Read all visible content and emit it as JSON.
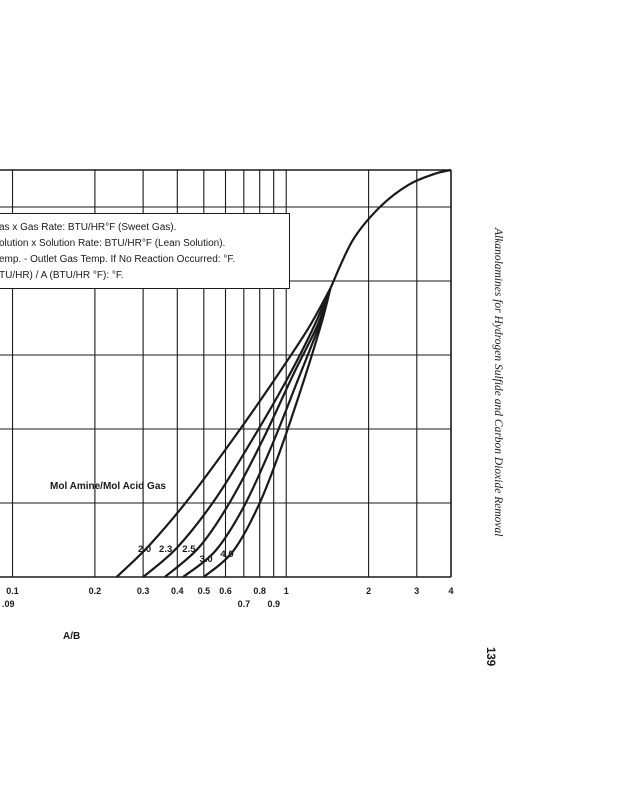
{
  "notes": [
    "as x Gas Rate: BTU/HR°F (Sweet Gas).",
    "olution x Solution Rate: BTU/HR°F (Lean Solution).",
    "emp. - Outlet Gas Temp. If No Reaction Occurred: °F.",
    "TU/HR) / A (BTU/HR °F): °F."
  ],
  "side_title": "Alkanolamines for Hydrogen Sulfide and Carbon Dioxide Removal",
  "page_number": "139",
  "chart_data": {
    "type": "line",
    "xscale": "log",
    "xlim": [
      0.09,
      4
    ],
    "xlabel": "A/B",
    "ylabel": "",
    "title": "",
    "grid": true,
    "x_ticks_upper": [
      "0.1",
      "0.2",
      "0.3",
      "0.4",
      "0.5",
      "0.6",
      "0.8",
      "1",
      "2",
      "3",
      "4"
    ],
    "x_ticks_upper_values": [
      0.1,
      0.2,
      0.3,
      0.4,
      0.5,
      0.6,
      0.8,
      1,
      2,
      3,
      4
    ],
    "x_ticks_lower": [
      ".09",
      "0.7",
      "0.9"
    ],
    "x_ticks_lower_values": [
      0.09,
      0.7,
      0.9
    ],
    "annotation": "Mol Amine/Mol Acid Gas",
    "series": [
      {
        "name": "2.0",
        "label_at": 0.31,
        "points": [
          [
            0.24,
            0.0
          ],
          [
            0.32,
            0.09
          ],
          [
            0.45,
            0.22
          ],
          [
            0.65,
            0.38
          ],
          [
            0.9,
            0.53
          ],
          [
            1.2,
            0.67
          ],
          [
            1.45,
            0.78
          ]
        ]
      },
      {
        "name": "2.3",
        "label_at": 0.37,
        "points": [
          [
            0.3,
            0.0
          ],
          [
            0.4,
            0.08
          ],
          [
            0.55,
            0.21
          ],
          [
            0.75,
            0.37
          ],
          [
            1.0,
            0.53
          ],
          [
            1.25,
            0.67
          ],
          [
            1.45,
            0.78
          ]
        ]
      },
      {
        "name": "2.5",
        "label_at": 0.45,
        "points": [
          [
            0.36,
            0.0
          ],
          [
            0.48,
            0.08
          ],
          [
            0.62,
            0.2
          ],
          [
            0.82,
            0.37
          ],
          [
            1.05,
            0.54
          ],
          [
            1.3,
            0.68
          ],
          [
            1.45,
            0.78
          ]
        ]
      },
      {
        "name": "3.0",
        "label_at": 0.52,
        "points": [
          [
            0.42,
            0.0
          ],
          [
            0.55,
            0.07
          ],
          [
            0.7,
            0.19
          ],
          [
            0.88,
            0.35
          ],
          [
            1.1,
            0.53
          ],
          [
            1.32,
            0.68
          ],
          [
            1.45,
            0.78
          ]
        ]
      },
      {
        "name": "4.0",
        "label_at": 0.62,
        "points": [
          [
            0.5,
            0.0
          ],
          [
            0.64,
            0.07
          ],
          [
            0.8,
            0.2
          ],
          [
            0.97,
            0.36
          ],
          [
            1.17,
            0.54
          ],
          [
            1.35,
            0.69
          ],
          [
            1.45,
            0.78
          ]
        ]
      },
      {
        "name": "",
        "points": [
          [
            1.45,
            0.78
          ],
          [
            1.75,
            0.91
          ],
          [
            2.2,
            1.0
          ],
          [
            2.8,
            1.06
          ],
          [
            3.5,
            1.09
          ],
          [
            4.0,
            1.1
          ]
        ]
      }
    ]
  }
}
